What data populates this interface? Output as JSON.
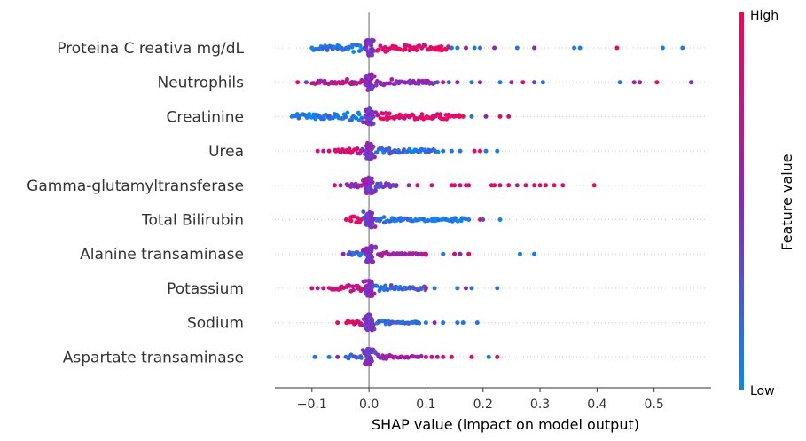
{
  "chart_data": {
    "type": "scatter",
    "subtype": "shap-beeswarm",
    "xlabel": "SHAP value (impact on model output)",
    "xlim": [
      -0.165,
      0.6
    ],
    "xticks": [
      -0.1,
      0.0,
      0.1,
      0.2,
      0.3,
      0.4,
      0.5
    ],
    "xtick_labels": [
      "−0.1",
      "0.0",
      "0.1",
      "0.2",
      "0.3",
      "0.4",
      "0.5"
    ],
    "zero_line": 0.0,
    "colorbar": {
      "title": "Feature value",
      "high_label": "High",
      "low_label": "Low",
      "high_color": "#ff0052",
      "mid_color": "#8b25bf",
      "low_color": "#008bfb"
    },
    "features": [
      {
        "name": "Proteina C reativa mg/dL",
        "core": {
          "from": -0.095,
          "to": 0.14,
          "low_side": 0.1,
          "high_side": 0.9,
          "spread": 3
        },
        "points": [
          {
            "x": -0.1,
            "v": 0.05
          },
          {
            "x": 0.145,
            "v": 0.1
          },
          {
            "x": 0.155,
            "v": 0.05
          },
          {
            "x": 0.17,
            "v": 0.6
          },
          {
            "x": 0.185,
            "v": 0.1
          },
          {
            "x": 0.195,
            "v": 0.15
          },
          {
            "x": 0.22,
            "v": 0.6
          },
          {
            "x": 0.26,
            "v": 0.1
          },
          {
            "x": 0.29,
            "v": 0.5
          },
          {
            "x": 0.36,
            "v": 0.1
          },
          {
            "x": 0.37,
            "v": 0.05
          },
          {
            "x": 0.435,
            "v": 0.95
          },
          {
            "x": 0.515,
            "v": 0.05
          },
          {
            "x": 0.55,
            "v": 0.05
          }
        ]
      },
      {
        "name": "Neutrophils",
        "core": {
          "from": -0.1,
          "to": 0.115,
          "low_side": 0.7,
          "high_side": 0.5,
          "spread": 2
        },
        "points": [
          {
            "x": -0.125,
            "v": 0.9
          },
          {
            "x": -0.11,
            "v": 0.4
          },
          {
            "x": 0.12,
            "v": 0.3
          },
          {
            "x": 0.13,
            "v": 0.8
          },
          {
            "x": 0.14,
            "v": 0.2
          },
          {
            "x": 0.155,
            "v": 0.6
          },
          {
            "x": 0.18,
            "v": 0.1
          },
          {
            "x": 0.195,
            "v": 0.55
          },
          {
            "x": 0.23,
            "v": 0.1
          },
          {
            "x": 0.25,
            "v": 0.5
          },
          {
            "x": 0.27,
            "v": 0.9
          },
          {
            "x": 0.29,
            "v": 0.4
          },
          {
            "x": 0.305,
            "v": 0.1
          },
          {
            "x": 0.44,
            "v": 0.1
          },
          {
            "x": 0.465,
            "v": 0.7
          },
          {
            "x": 0.475,
            "v": 0.5
          },
          {
            "x": 0.505,
            "v": 0.9
          },
          {
            "x": 0.565,
            "v": 0.45
          }
        ]
      },
      {
        "name": "Creatinine",
        "core": {
          "from": -0.13,
          "to": 0.16,
          "low_side": 0.1,
          "high_side": 0.9,
          "spread": 3
        },
        "points": [
          {
            "x": -0.135,
            "v": 0.05
          },
          {
            "x": 0.165,
            "v": 0.9
          },
          {
            "x": 0.18,
            "v": 0.1
          },
          {
            "x": 0.205,
            "v": 0.55
          },
          {
            "x": 0.23,
            "v": 0.9
          },
          {
            "x": 0.245,
            "v": 0.85
          }
        ]
      },
      {
        "name": "Urea",
        "core": {
          "from": -0.06,
          "to": 0.12,
          "low_side": 0.85,
          "high_side": 0.15,
          "spread": 2
        },
        "points": [
          {
            "x": -0.09,
            "v": 0.9
          },
          {
            "x": -0.08,
            "v": 0.6
          },
          {
            "x": -0.07,
            "v": 0.9
          },
          {
            "x": 0.13,
            "v": 0.1
          },
          {
            "x": 0.145,
            "v": 0.1
          },
          {
            "x": 0.16,
            "v": 0.1
          },
          {
            "x": 0.185,
            "v": 0.9
          },
          {
            "x": 0.195,
            "v": 0.9
          },
          {
            "x": 0.205,
            "v": 0.1
          },
          {
            "x": 0.225,
            "v": 0.05
          }
        ]
      },
      {
        "name": "Gamma-glutamyltransferase",
        "core": {
          "from": -0.04,
          "to": 0.05,
          "low_side": 0.5,
          "high_side": 0.3,
          "spread": 1
        },
        "points": [
          {
            "x": -0.06,
            "v": 0.9
          },
          {
            "x": -0.05,
            "v": 0.6
          },
          {
            "x": 0.07,
            "v": 0.5
          },
          {
            "x": 0.085,
            "v": 0.9
          },
          {
            "x": 0.11,
            "v": 0.85
          },
          {
            "x": 0.145,
            "v": 0.9
          },
          {
            "x": 0.15,
            "v": 0.9
          },
          {
            "x": 0.16,
            "v": 0.9
          },
          {
            "x": 0.17,
            "v": 0.85
          },
          {
            "x": 0.175,
            "v": 0.9
          },
          {
            "x": 0.215,
            "v": 0.9
          },
          {
            "x": 0.22,
            "v": 0.9
          },
          {
            "x": 0.23,
            "v": 0.85
          },
          {
            "x": 0.245,
            "v": 0.9
          },
          {
            "x": 0.26,
            "v": 0.6
          },
          {
            "x": 0.275,
            "v": 0.9
          },
          {
            "x": 0.29,
            "v": 0.9
          },
          {
            "x": 0.3,
            "v": 0.85
          },
          {
            "x": 0.31,
            "v": 0.9
          },
          {
            "x": 0.325,
            "v": 0.9
          },
          {
            "x": 0.34,
            "v": 0.9
          },
          {
            "x": 0.395,
            "v": 0.95
          }
        ]
      },
      {
        "name": "Total Bilirubin",
        "core": {
          "from": -0.035,
          "to": 0.17,
          "low_side": 0.9,
          "high_side": 0.1,
          "spread": 2
        },
        "points": [
          {
            "x": -0.04,
            "v": 0.9
          },
          {
            "x": 0.175,
            "v": 0.1
          },
          {
            "x": 0.195,
            "v": 0.9
          },
          {
            "x": 0.2,
            "v": 0.3
          },
          {
            "x": 0.23,
            "v": 0.05
          }
        ]
      },
      {
        "name": "Alanine transaminase",
        "core": {
          "from": -0.035,
          "to": 0.1,
          "low_side": 0.2,
          "high_side": 0.6,
          "spread": 1
        },
        "points": [
          {
            "x": -0.045,
            "v": 0.5
          },
          {
            "x": 0.1,
            "v": 0.9
          },
          {
            "x": 0.13,
            "v": 0.1
          },
          {
            "x": 0.15,
            "v": 0.9
          },
          {
            "x": 0.16,
            "v": 0.5
          },
          {
            "x": 0.175,
            "v": 0.9
          },
          {
            "x": 0.265,
            "v": 0.1
          },
          {
            "x": 0.29,
            "v": 0.1
          }
        ]
      },
      {
        "name": "Potassium",
        "core": {
          "from": -0.07,
          "to": 0.1,
          "low_side": 0.8,
          "high_side": 0.2,
          "spread": 2
        },
        "points": [
          {
            "x": -0.1,
            "v": 0.9
          },
          {
            "x": -0.09,
            "v": 0.6
          },
          {
            "x": -0.08,
            "v": 0.9
          },
          {
            "x": 0.1,
            "v": 0.9
          },
          {
            "x": 0.115,
            "v": 0.1
          },
          {
            "x": 0.155,
            "v": 0.1
          },
          {
            "x": 0.17,
            "v": 0.5
          },
          {
            "x": 0.18,
            "v": 0.1
          },
          {
            "x": 0.225,
            "v": 0.1
          }
        ]
      },
      {
        "name": "Sodium",
        "core": {
          "from": -0.04,
          "to": 0.09,
          "low_side": 0.9,
          "high_side": 0.2,
          "spread": 1
        },
        "points": [
          {
            "x": -0.055,
            "v": 0.9
          },
          {
            "x": 0.1,
            "v": 0.1
          },
          {
            "x": 0.115,
            "v": 0.5
          },
          {
            "x": 0.13,
            "v": 0.1
          },
          {
            "x": 0.155,
            "v": 0.1
          },
          {
            "x": 0.165,
            "v": 0.1
          },
          {
            "x": 0.19,
            "v": 0.1
          }
        ]
      },
      {
        "name": "Aspartate transaminase",
        "core": {
          "from": -0.04,
          "to": 0.09,
          "low_side": 0.2,
          "high_side": 0.6,
          "spread": 1
        },
        "points": [
          {
            "x": -0.095,
            "v": 0.1
          },
          {
            "x": -0.07,
            "v": 0.1
          },
          {
            "x": -0.055,
            "v": 0.5
          },
          {
            "x": 0.1,
            "v": 0.9
          },
          {
            "x": 0.11,
            "v": 0.9
          },
          {
            "x": 0.12,
            "v": 0.6
          },
          {
            "x": 0.13,
            "v": 0.9
          },
          {
            "x": 0.145,
            "v": 0.9
          },
          {
            "x": 0.18,
            "v": 0.9
          },
          {
            "x": 0.21,
            "v": 0.1
          },
          {
            "x": 0.225,
            "v": 0.9
          }
        ]
      }
    ]
  }
}
